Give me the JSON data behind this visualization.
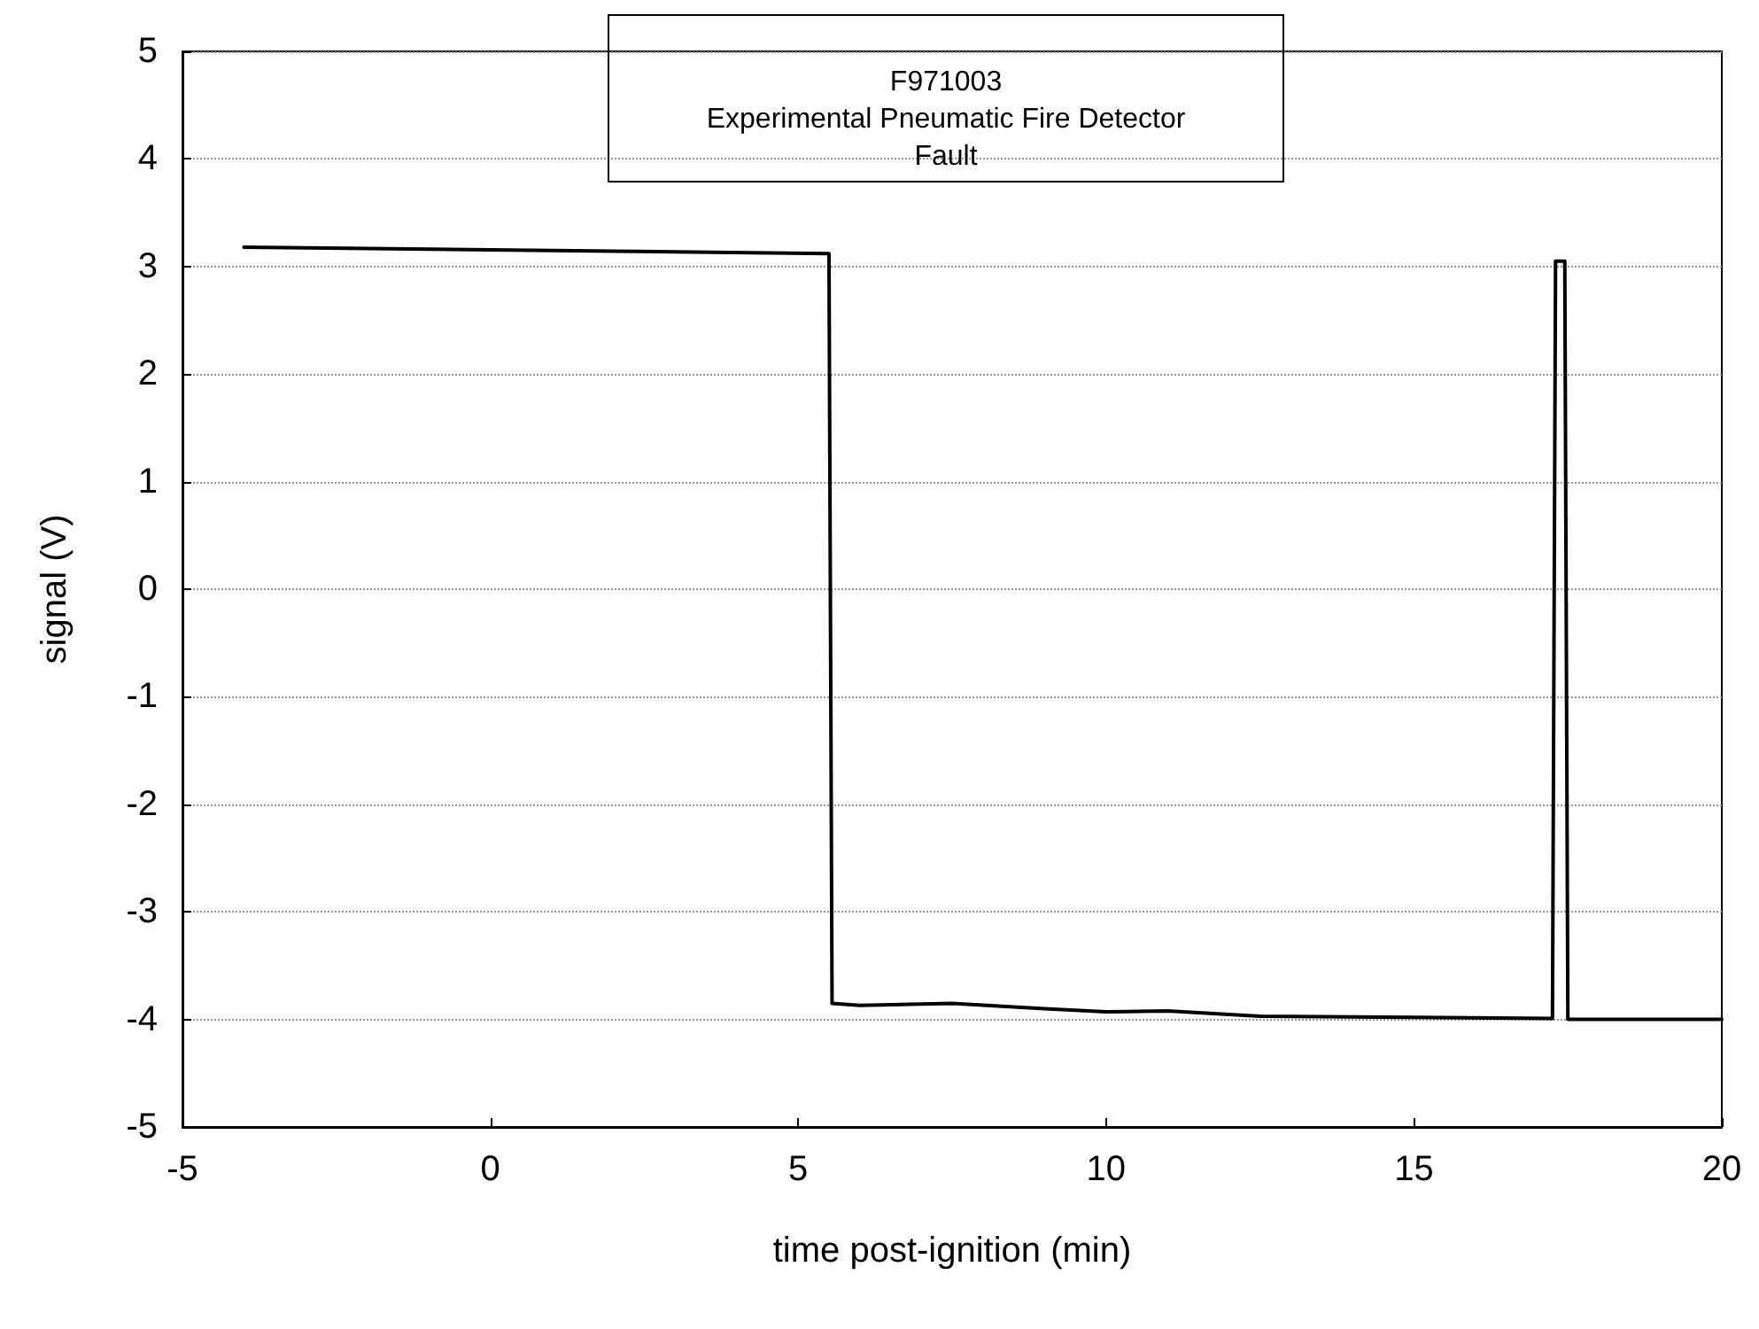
{
  "chart_data": {
    "type": "line",
    "title": "F971003\nExperimental Pneumatic Fire Detector\nFault",
    "xlabel": "time post-ignition (min)",
    "ylabel": "signal (V)",
    "x": [
      -4,
      5.5,
      5.55,
      6,
      7.5,
      9,
      10,
      11,
      12.5,
      15,
      17.25,
      17.3,
      17.45,
      17.5,
      20
    ],
    "series": [
      {
        "color": "#000000",
        "values": [
          3.18,
          3.12,
          -3.85,
          -3.87,
          -3.85,
          -3.9,
          -3.93,
          -3.92,
          -3.97,
          -3.98,
          -3.99,
          3.05,
          3.05,
          -4.0,
          -4.0
        ]
      }
    ],
    "xlim": [
      -5,
      20
    ],
    "xticks": [
      -5,
      0,
      5,
      10,
      15,
      20
    ],
    "ylim": [
      -5,
      5
    ],
    "yticks": [
      -5,
      -4,
      -3,
      -2,
      -1,
      0,
      1,
      2,
      3,
      4,
      5
    ],
    "grid": "y",
    "marker": "none",
    "line_style": "solid"
  }
}
